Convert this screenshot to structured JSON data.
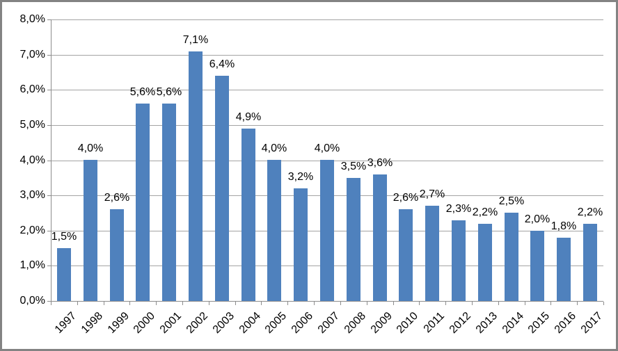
{
  "window": {
    "border_color": "#838383",
    "background": "#ffffff"
  },
  "chart_data": {
    "type": "bar",
    "title": "",
    "xlabel": "",
    "ylabel": "",
    "categories": [
      "1997",
      "1998",
      "1999",
      "2000",
      "2001",
      "2002",
      "2003",
      "2004",
      "2005",
      "2006",
      "2007",
      "2008",
      "2009",
      "2010",
      "2011",
      "2012",
      "2013",
      "2014",
      "2015",
      "2016",
      "2017"
    ],
    "values": [
      1.5,
      4.0,
      2.6,
      5.6,
      5.6,
      7.1,
      6.4,
      4.9,
      4.0,
      3.2,
      4.0,
      3.5,
      3.6,
      2.6,
      2.7,
      2.3,
      2.2,
      2.5,
      2.0,
      1.8,
      2.2
    ],
    "data_labels": [
      "1,5%",
      "4,0%",
      "2,6%",
      "5,6%",
      "5,6%",
      "7,1%",
      "6,4%",
      "4,9%",
      "4,0%",
      "3,2%",
      "4,0%",
      "3,5%",
      "3,6%",
      "2,6%",
      "2,7%",
      "2,3%",
      "2,2%",
      "2,5%",
      "2,0%",
      "1,8%",
      "2,2%"
    ],
    "y_ticks": [
      "0,0%",
      "1,0%",
      "2,0%",
      "3,0%",
      "4,0%",
      "5,0%",
      "6,0%",
      "7,0%",
      "8,0%"
    ],
    "ylim": [
      0,
      8
    ],
    "grid": true,
    "legend": "none",
    "bar_color": "#4f81bd",
    "gridline_color": "#a3a3a3",
    "axis_color": "#8c8c8c",
    "label_color": "#000000"
  }
}
